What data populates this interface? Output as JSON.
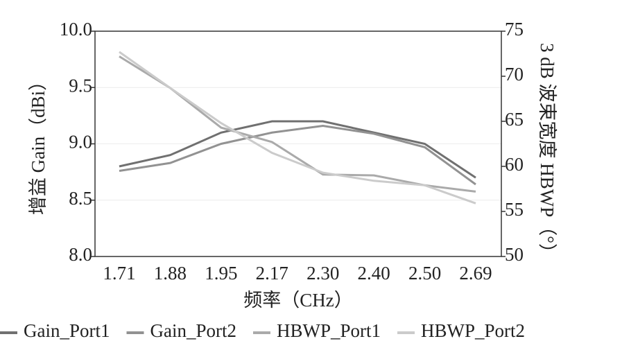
{
  "chart_data": {
    "type": "line",
    "x_label": "频率（CHz）",
    "y_label": "增益 Gain（dBi）",
    "y2_label": "3 dB 波束宽度 HBWP（°）",
    "categories": [
      "1.71",
      "1.88",
      "1.95",
      "2.17",
      "2.30",
      "2.40",
      "2.50",
      "2.69"
    ],
    "ylim": [
      8.0,
      10.0
    ],
    "yticks": [
      {
        "value": 8.0,
        "label": "8.0"
      },
      {
        "value": 8.5,
        "label": "8.5"
      },
      {
        "value": 9.0,
        "label": "9.0"
      },
      {
        "value": 9.5,
        "label": "9.5"
      },
      {
        "value": 10.0,
        "label": "10.0"
      }
    ],
    "y2lim": [
      50,
      75
    ],
    "y2ticks": [
      50,
      55,
      60,
      65,
      70,
      75
    ],
    "grid": true,
    "legend": "bottom",
    "series": [
      {
        "name": "Gain_Port1",
        "color": "#707070",
        "values": [
          8.8,
          8.9,
          9.1,
          9.2,
          9.2,
          9.1,
          9.0,
          8.7
        ]
      },
      {
        "name": "Gain_Port2",
        "color": "#929292",
        "values": [
          8.76,
          8.83,
          9.0,
          9.1,
          9.16,
          9.09,
          8.97,
          8.64
        ]
      },
      {
        "name": "HBWP_Port1",
        "color": "#aaaaaa",
        "axis": "y2",
        "values": [
          72.2,
          68.7,
          64.3,
          62.7,
          59.1,
          59.0,
          57.9,
          57.2
        ]
      },
      {
        "name": "HBWP_Port2",
        "color": "#cbcbcb",
        "axis": "y2",
        "values": [
          72.7,
          68.7,
          64.8,
          61.5,
          59.3,
          58.4,
          57.9,
          55.9
        ]
      }
    ]
  }
}
